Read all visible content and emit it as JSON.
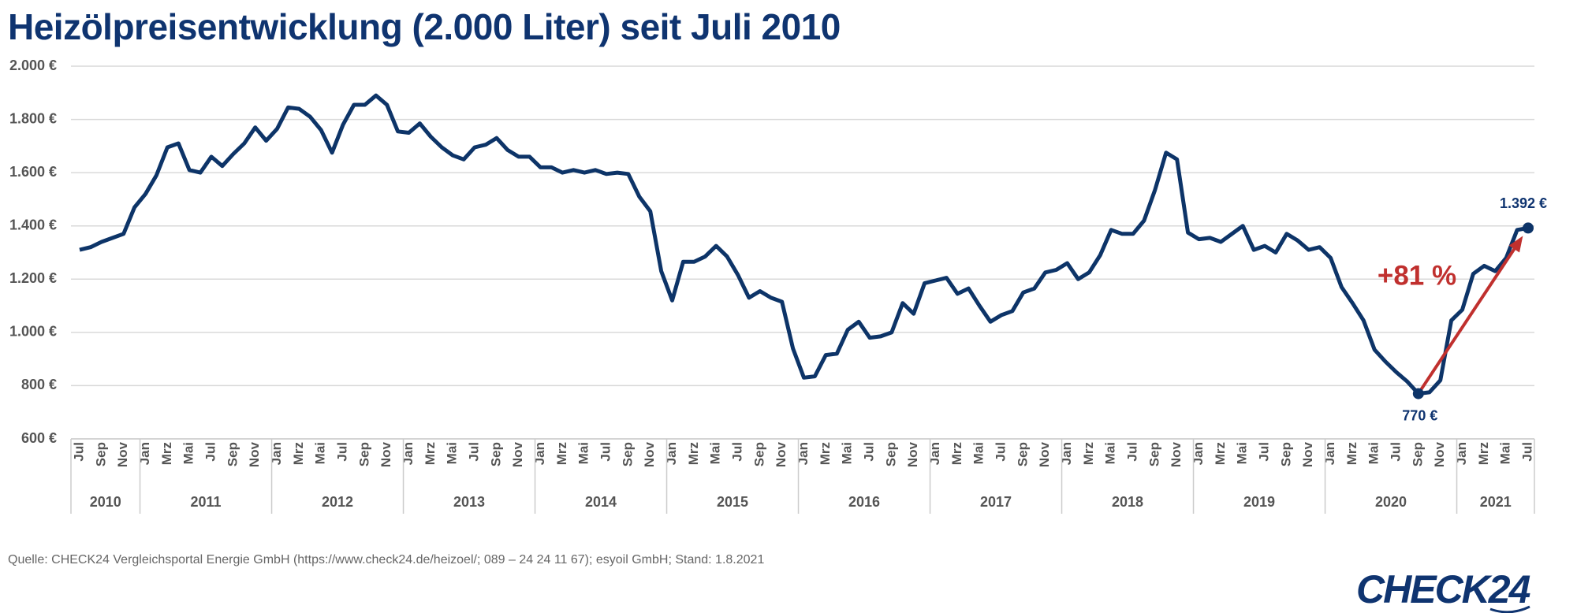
{
  "chart_data": {
    "type": "line",
    "title": "Heizölpreisentwicklung (2.000 Liter) seit Juli 2010",
    "categories": [
      "Jul",
      null,
      "Sep",
      null,
      "Nov",
      null,
      "Jan",
      null,
      "Mrz",
      null,
      "Mai",
      null,
      "Jul",
      null,
      "Sep",
      null,
      "Nov",
      null,
      "Jan",
      null,
      "Mrz",
      null,
      "Mai",
      null,
      "Jul",
      null,
      "Sep",
      null,
      "Nov",
      null,
      "Jan",
      null,
      "Mrz",
      null,
      "Mai",
      null,
      "Jul",
      null,
      "Sep",
      null,
      "Nov",
      null,
      "Jan",
      null,
      "Mrz",
      null,
      "Mai",
      null,
      "Jul",
      null,
      "Sep",
      null,
      "Nov",
      null,
      "Jan",
      null,
      "Mrz",
      null,
      "Mai",
      null,
      "Jul",
      null,
      "Sep",
      null,
      "Nov",
      null,
      "Jan",
      null,
      "Mrz",
      null,
      "Mai",
      null,
      "Jul",
      null,
      "Sep",
      null,
      "Nov",
      null,
      "Jan",
      null,
      "Mrz",
      null,
      "Mai",
      null,
      "Jul",
      null,
      "Sep",
      null,
      "Nov",
      null,
      "Jan",
      null,
      "Mrz",
      null,
      "Mai",
      null,
      "Jul",
      null,
      "Sep",
      null,
      "Nov",
      null,
      "Jan",
      null,
      "Mrz",
      null,
      "Mai",
      null,
      "Jul",
      null,
      "Sep",
      null,
      "Nov",
      null,
      "Jan",
      null,
      "Mrz",
      null,
      "Mai",
      null,
      "Jul",
      null,
      "Sep",
      null,
      "Nov",
      null,
      "Jan",
      null,
      "Mrz",
      null,
      "Mai",
      null,
      "Jul"
    ],
    "years": [
      "2010",
      "2011",
      "2012",
      "2013",
      "2014",
      "2015",
      "2016",
      "2017",
      "2018",
      "2019",
      "2020",
      "2021"
    ],
    "year_spans": [
      6,
      12,
      12,
      12,
      12,
      12,
      12,
      12,
      12,
      12,
      12,
      7
    ],
    "series": [
      {
        "name": "Heizölpreis",
        "color": "#0d3468",
        "values": [
          1310,
          1320,
          1340,
          1355,
          1370,
          1470,
          1520,
          1590,
          1695,
          1710,
          1610,
          1600,
          1660,
          1625,
          1670,
          1710,
          1770,
          1720,
          1765,
          1845,
          1840,
          1810,
          1760,
          1675,
          1780,
          1855,
          1855,
          1890,
          1855,
          1755,
          1750,
          1785,
          1735,
          1695,
          1665,
          1650,
          1695,
          1705,
          1730,
          1685,
          1660,
          1660,
          1620,
          1620,
          1600,
          1610,
          1600,
          1610,
          1595,
          1600,
          1595,
          1510,
          1455,
          1230,
          1120,
          1265,
          1265,
          1285,
          1325,
          1285,
          1215,
          1130,
          1155,
          1130,
          1115,
          940,
          830,
          835,
          915,
          920,
          1010,
          1040,
          980,
          985,
          1000,
          1110,
          1070,
          1185,
          1195,
          1205,
          1145,
          1165,
          1100,
          1040,
          1065,
          1080,
          1150,
          1165,
          1225,
          1235,
          1260,
          1200,
          1225,
          1290,
          1385,
          1370,
          1370,
          1420,
          1535,
          1675,
          1650,
          1375,
          1350,
          1355,
          1340,
          1370,
          1400,
          1310,
          1325,
          1300,
          1370,
          1345,
          1310,
          1320,
          1280,
          1170,
          1110,
          1045,
          935,
          890,
          850,
          815,
          770,
          775,
          820,
          1045,
          1085,
          1220,
          1250,
          1230,
          1280,
          1385,
          1392
        ],
        "value_labels": [
          null,
          null,
          null,
          null,
          null,
          null,
          null,
          null,
          null,
          null,
          null,
          null,
          null,
          null,
          null,
          null,
          null,
          null,
          null,
          null,
          null,
          null,
          null,
          null,
          null,
          null,
          null,
          null,
          null,
          null,
          null,
          null,
          null,
          null,
          null,
          null,
          null,
          null,
          null,
          null,
          null,
          null,
          null,
          null,
          null,
          null,
          null,
          null,
          null,
          null,
          null,
          null,
          null,
          null,
          null,
          null,
          null,
          null,
          null,
          null,
          null,
          null,
          null,
          null,
          null,
          null,
          null,
          null,
          null,
          null,
          null,
          null,
          null,
          null,
          null,
          null,
          null,
          null,
          null,
          null,
          null,
          null,
          null,
          null,
          null,
          null,
          null,
          null,
          null,
          null,
          null,
          null,
          null,
          null,
          null,
          null,
          null,
          null,
          null,
          null,
          null,
          null,
          null,
          null,
          null,
          null,
          null,
          null,
          null,
          null,
          null,
          null,
          null,
          null,
          null,
          null,
          null,
          null,
          null,
          null,
          null,
          null,
          "770 €",
          null,
          null,
          null,
          null,
          null,
          null,
          null,
          null,
          null,
          "1.392 €"
        ]
      }
    ],
    "annotation": {
      "text": "+81 %",
      "color": "#c0302e",
      "from": 122,
      "to": 132
    },
    "ylim": [
      600,
      2000
    ],
    "yticks": [
      {
        "value": 600,
        "label": "600 €"
      },
      {
        "value": 800,
        "label": "800 €"
      },
      {
        "value": 1000,
        "label": "1.000 €"
      },
      {
        "value": 1200,
        "label": "1.200 €"
      },
      {
        "value": 1400,
        "label": "1.400 €"
      },
      {
        "value": 1600,
        "label": "1.600 €"
      },
      {
        "value": 1800,
        "label": "1.800 €"
      },
      {
        "value": 2000,
        "label": "2.000 €"
      }
    ],
    "grid": true,
    "source": "Quelle: CHECK24 Vergleichsportal Energie GmbH (https://www.check24.de/heizoel/; 089 – 24 24 11 67); esyoil GmbH; Stand: 1.8.2021",
    "logo": "CHECK24"
  }
}
